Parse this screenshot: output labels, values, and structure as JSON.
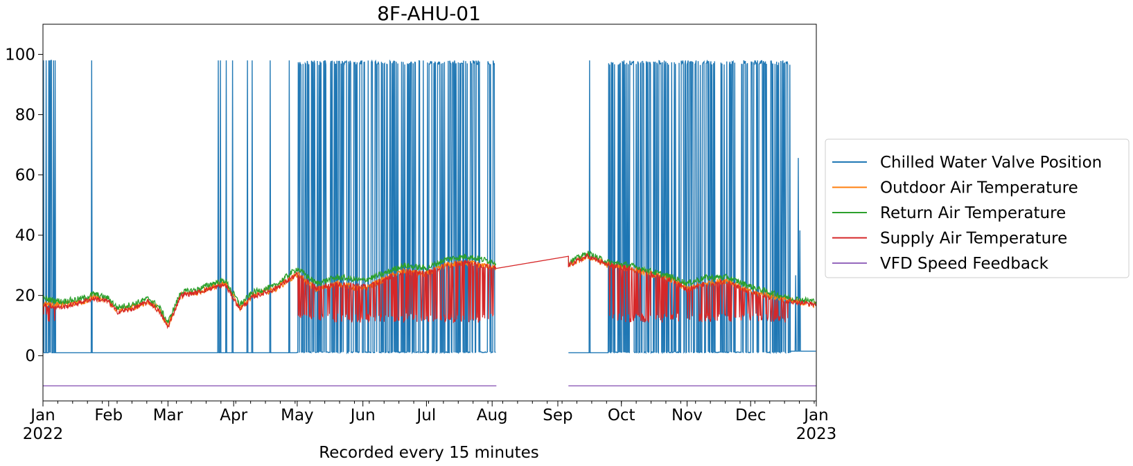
{
  "chart_data": {
    "type": "line",
    "title": "8F-AHU-01",
    "xlabel": "Recorded every 15 minutes",
    "ylabel": "",
    "sampling_interval": "15 minutes",
    "xlim": [
      "2022-01-01",
      "2023-01-01"
    ],
    "ylim": [
      -15,
      110
    ],
    "yticks": [
      0,
      20,
      40,
      60,
      80,
      100
    ],
    "xticks": [
      {
        "date": "2022-01-01",
        "label": "Jan",
        "sublabel": "2022"
      },
      {
        "date": "2022-02-01",
        "label": "Feb",
        "sublabel": ""
      },
      {
        "date": "2022-03-01",
        "label": "Mar",
        "sublabel": ""
      },
      {
        "date": "2022-04-01",
        "label": "Apr",
        "sublabel": ""
      },
      {
        "date": "2022-05-01",
        "label": "May",
        "sublabel": ""
      },
      {
        "date": "2022-06-01",
        "label": "Jun",
        "sublabel": ""
      },
      {
        "date": "2022-07-01",
        "label": "Jul",
        "sublabel": ""
      },
      {
        "date": "2022-08-01",
        "label": "Aug",
        "sublabel": ""
      },
      {
        "date": "2022-09-01",
        "label": "Sep",
        "sublabel": ""
      },
      {
        "date": "2022-10-01",
        "label": "Oct",
        "sublabel": ""
      },
      {
        "date": "2022-11-01",
        "label": "Nov",
        "sublabel": ""
      },
      {
        "date": "2022-12-01",
        "label": "Dec",
        "sublabel": ""
      },
      {
        "date": "2023-01-01",
        "label": "Jan",
        "sublabel": "2023"
      }
    ],
    "grid": false,
    "legend_position": "center-right outside",
    "data_gap": {
      "start": "2022-08-03",
      "end": "2022-09-06"
    },
    "series": [
      {
        "name": "Chilled Water Valve Position",
        "color": "#1f77b4",
        "baseline": 1,
        "peak": 98,
        "note_segments": [
          {
            "start": "2022-01-01",
            "end": "2022-01-07",
            "pattern": "frequent spikes to 98"
          },
          {
            "start": "2022-01-07",
            "end": "2022-03-16",
            "pattern": "mostly 1, single spike at 2022-01-24"
          },
          {
            "start": "2022-03-16",
            "end": "2022-05-01",
            "pattern": "intermittent spikes to 98"
          },
          {
            "start": "2022-05-01",
            "end": "2022-08-03",
            "pattern": "dense oscillation 1-98"
          },
          {
            "start": "2022-08-03",
            "end": "2022-09-06",
            "pattern": "no data"
          },
          {
            "start": "2022-09-06",
            "end": "2022-09-25",
            "pattern": "mostly 1, spike at 2022-09-16"
          },
          {
            "start": "2022-09-25",
            "end": "2022-12-20",
            "pattern": "dense oscillation 1-98"
          },
          {
            "start": "2022-12-20",
            "end": "2023-01-01",
            "pattern": "mostly 1-2, small spikes"
          }
        ]
      },
      {
        "name": "Outdoor Air Temperature",
        "color": "#ff7f0e",
        "points": [
          [
            "2022-01-01",
            17
          ],
          [
            "2022-01-10",
            17
          ],
          [
            "2022-01-20",
            18
          ],
          [
            "2022-01-25",
            19.5
          ],
          [
            "2022-02-01",
            18
          ],
          [
            "2022-02-05",
            15
          ],
          [
            "2022-02-12",
            16
          ],
          [
            "2022-02-20",
            18
          ],
          [
            "2022-02-25",
            15
          ],
          [
            "2022-03-01",
            10
          ],
          [
            "2022-03-07",
            20
          ],
          [
            "2022-03-15",
            21
          ],
          [
            "2022-03-22",
            23
          ],
          [
            "2022-03-28",
            24
          ],
          [
            "2022-04-04",
            16
          ],
          [
            "2022-04-10",
            20
          ],
          [
            "2022-04-20",
            22
          ],
          [
            "2022-05-01",
            27
          ],
          [
            "2022-05-10",
            22
          ],
          [
            "2022-05-20",
            24
          ],
          [
            "2022-06-01",
            22
          ],
          [
            "2022-06-10",
            25
          ],
          [
            "2022-06-20",
            28
          ],
          [
            "2022-07-01",
            27
          ],
          [
            "2022-07-10",
            30
          ],
          [
            "2022-07-20",
            31
          ],
          [
            "2022-08-03",
            29
          ],
          [
            "2022-09-06",
            30
          ],
          [
            "2022-09-15",
            33
          ],
          [
            "2022-09-25",
            30
          ],
          [
            "2022-10-05",
            29
          ],
          [
            "2022-10-15",
            27
          ],
          [
            "2022-10-25",
            25
          ],
          [
            "2022-11-01",
            22
          ],
          [
            "2022-11-10",
            24
          ],
          [
            "2022-11-20",
            25
          ],
          [
            "2022-12-01",
            21
          ],
          [
            "2022-12-10",
            20
          ],
          [
            "2022-12-20",
            18
          ],
          [
            "2023-01-01",
            17
          ]
        ]
      },
      {
        "name": "Return Air Temperature",
        "color": "#2ca02c",
        "points": [
          [
            "2022-01-01",
            19
          ],
          [
            "2022-01-10",
            18
          ],
          [
            "2022-01-20",
            19
          ],
          [
            "2022-01-25",
            20.5
          ],
          [
            "2022-02-01",
            19
          ],
          [
            "2022-02-05",
            16
          ],
          [
            "2022-02-12",
            17
          ],
          [
            "2022-02-20",
            19
          ],
          [
            "2022-02-25",
            16
          ],
          [
            "2022-03-01",
            11
          ],
          [
            "2022-03-07",
            21
          ],
          [
            "2022-03-15",
            22
          ],
          [
            "2022-03-22",
            24
          ],
          [
            "2022-03-28",
            25
          ],
          [
            "2022-04-04",
            17
          ],
          [
            "2022-04-10",
            21
          ],
          [
            "2022-04-20",
            23
          ],
          [
            "2022-05-01",
            29
          ],
          [
            "2022-05-10",
            24
          ],
          [
            "2022-05-20",
            26
          ],
          [
            "2022-06-01",
            25
          ],
          [
            "2022-06-10",
            27
          ],
          [
            "2022-06-20",
            30
          ],
          [
            "2022-07-01",
            29
          ],
          [
            "2022-07-10",
            32
          ],
          [
            "2022-07-20",
            33
          ],
          [
            "2022-08-03",
            31
          ],
          [
            "2022-09-06",
            31
          ],
          [
            "2022-09-15",
            34
          ],
          [
            "2022-09-25",
            31
          ],
          [
            "2022-10-05",
            30
          ],
          [
            "2022-10-15",
            28
          ],
          [
            "2022-10-25",
            26
          ],
          [
            "2022-11-01",
            24
          ],
          [
            "2022-11-10",
            26
          ],
          [
            "2022-11-20",
            26
          ],
          [
            "2022-12-01",
            23
          ],
          [
            "2022-12-10",
            21
          ],
          [
            "2022-12-20",
            19
          ],
          [
            "2023-01-01",
            18
          ]
        ]
      },
      {
        "name": "Supply Air Temperature",
        "color": "#d62728",
        "flat_segment": {
          "start": "2022-08-03",
          "end": "2022-09-06",
          "value": 33
        },
        "low_dips": 11,
        "points": [
          [
            "2022-01-01",
            17
          ],
          [
            "2022-01-10",
            16
          ],
          [
            "2022-01-20",
            18
          ],
          [
            "2022-01-25",
            19
          ],
          [
            "2022-02-01",
            18
          ],
          [
            "2022-02-05",
            14.5
          ],
          [
            "2022-02-12",
            15.5
          ],
          [
            "2022-02-20",
            18
          ],
          [
            "2022-02-25",
            14.5
          ],
          [
            "2022-03-01",
            9.5
          ],
          [
            "2022-03-07",
            20
          ],
          [
            "2022-03-15",
            21
          ],
          [
            "2022-03-22",
            22.5
          ],
          [
            "2022-03-28",
            23.5
          ],
          [
            "2022-04-04",
            15.5
          ],
          [
            "2022-04-10",
            19.5
          ],
          [
            "2022-04-20",
            22
          ],
          [
            "2022-05-01",
            27
          ],
          [
            "2022-05-10",
            22.5
          ],
          [
            "2022-05-20",
            24
          ],
          [
            "2022-06-01",
            23
          ],
          [
            "2022-06-10",
            25
          ],
          [
            "2022-06-20",
            28
          ],
          [
            "2022-07-01",
            27.5
          ],
          [
            "2022-07-10",
            30
          ],
          [
            "2022-07-20",
            31
          ],
          [
            "2022-08-03",
            29
          ],
          [
            "2022-09-06",
            30
          ],
          [
            "2022-09-15",
            33
          ],
          [
            "2022-09-25",
            30
          ],
          [
            "2022-10-05",
            29
          ],
          [
            "2022-10-15",
            27
          ],
          [
            "2022-10-25",
            25
          ],
          [
            "2022-11-01",
            22
          ],
          [
            "2022-11-10",
            24
          ],
          [
            "2022-11-20",
            24.5
          ],
          [
            "2022-12-01",
            21
          ],
          [
            "2022-12-10",
            19.5
          ],
          [
            "2022-12-20",
            18
          ],
          [
            "2023-01-01",
            17
          ]
        ]
      },
      {
        "name": "VFD Speed Feedback",
        "color": "#9467bd",
        "constant_value": -10,
        "active_ranges": [
          [
            "2022-01-01",
            "2022-08-03"
          ],
          [
            "2022-09-06",
            "2023-01-01"
          ]
        ]
      }
    ]
  }
}
